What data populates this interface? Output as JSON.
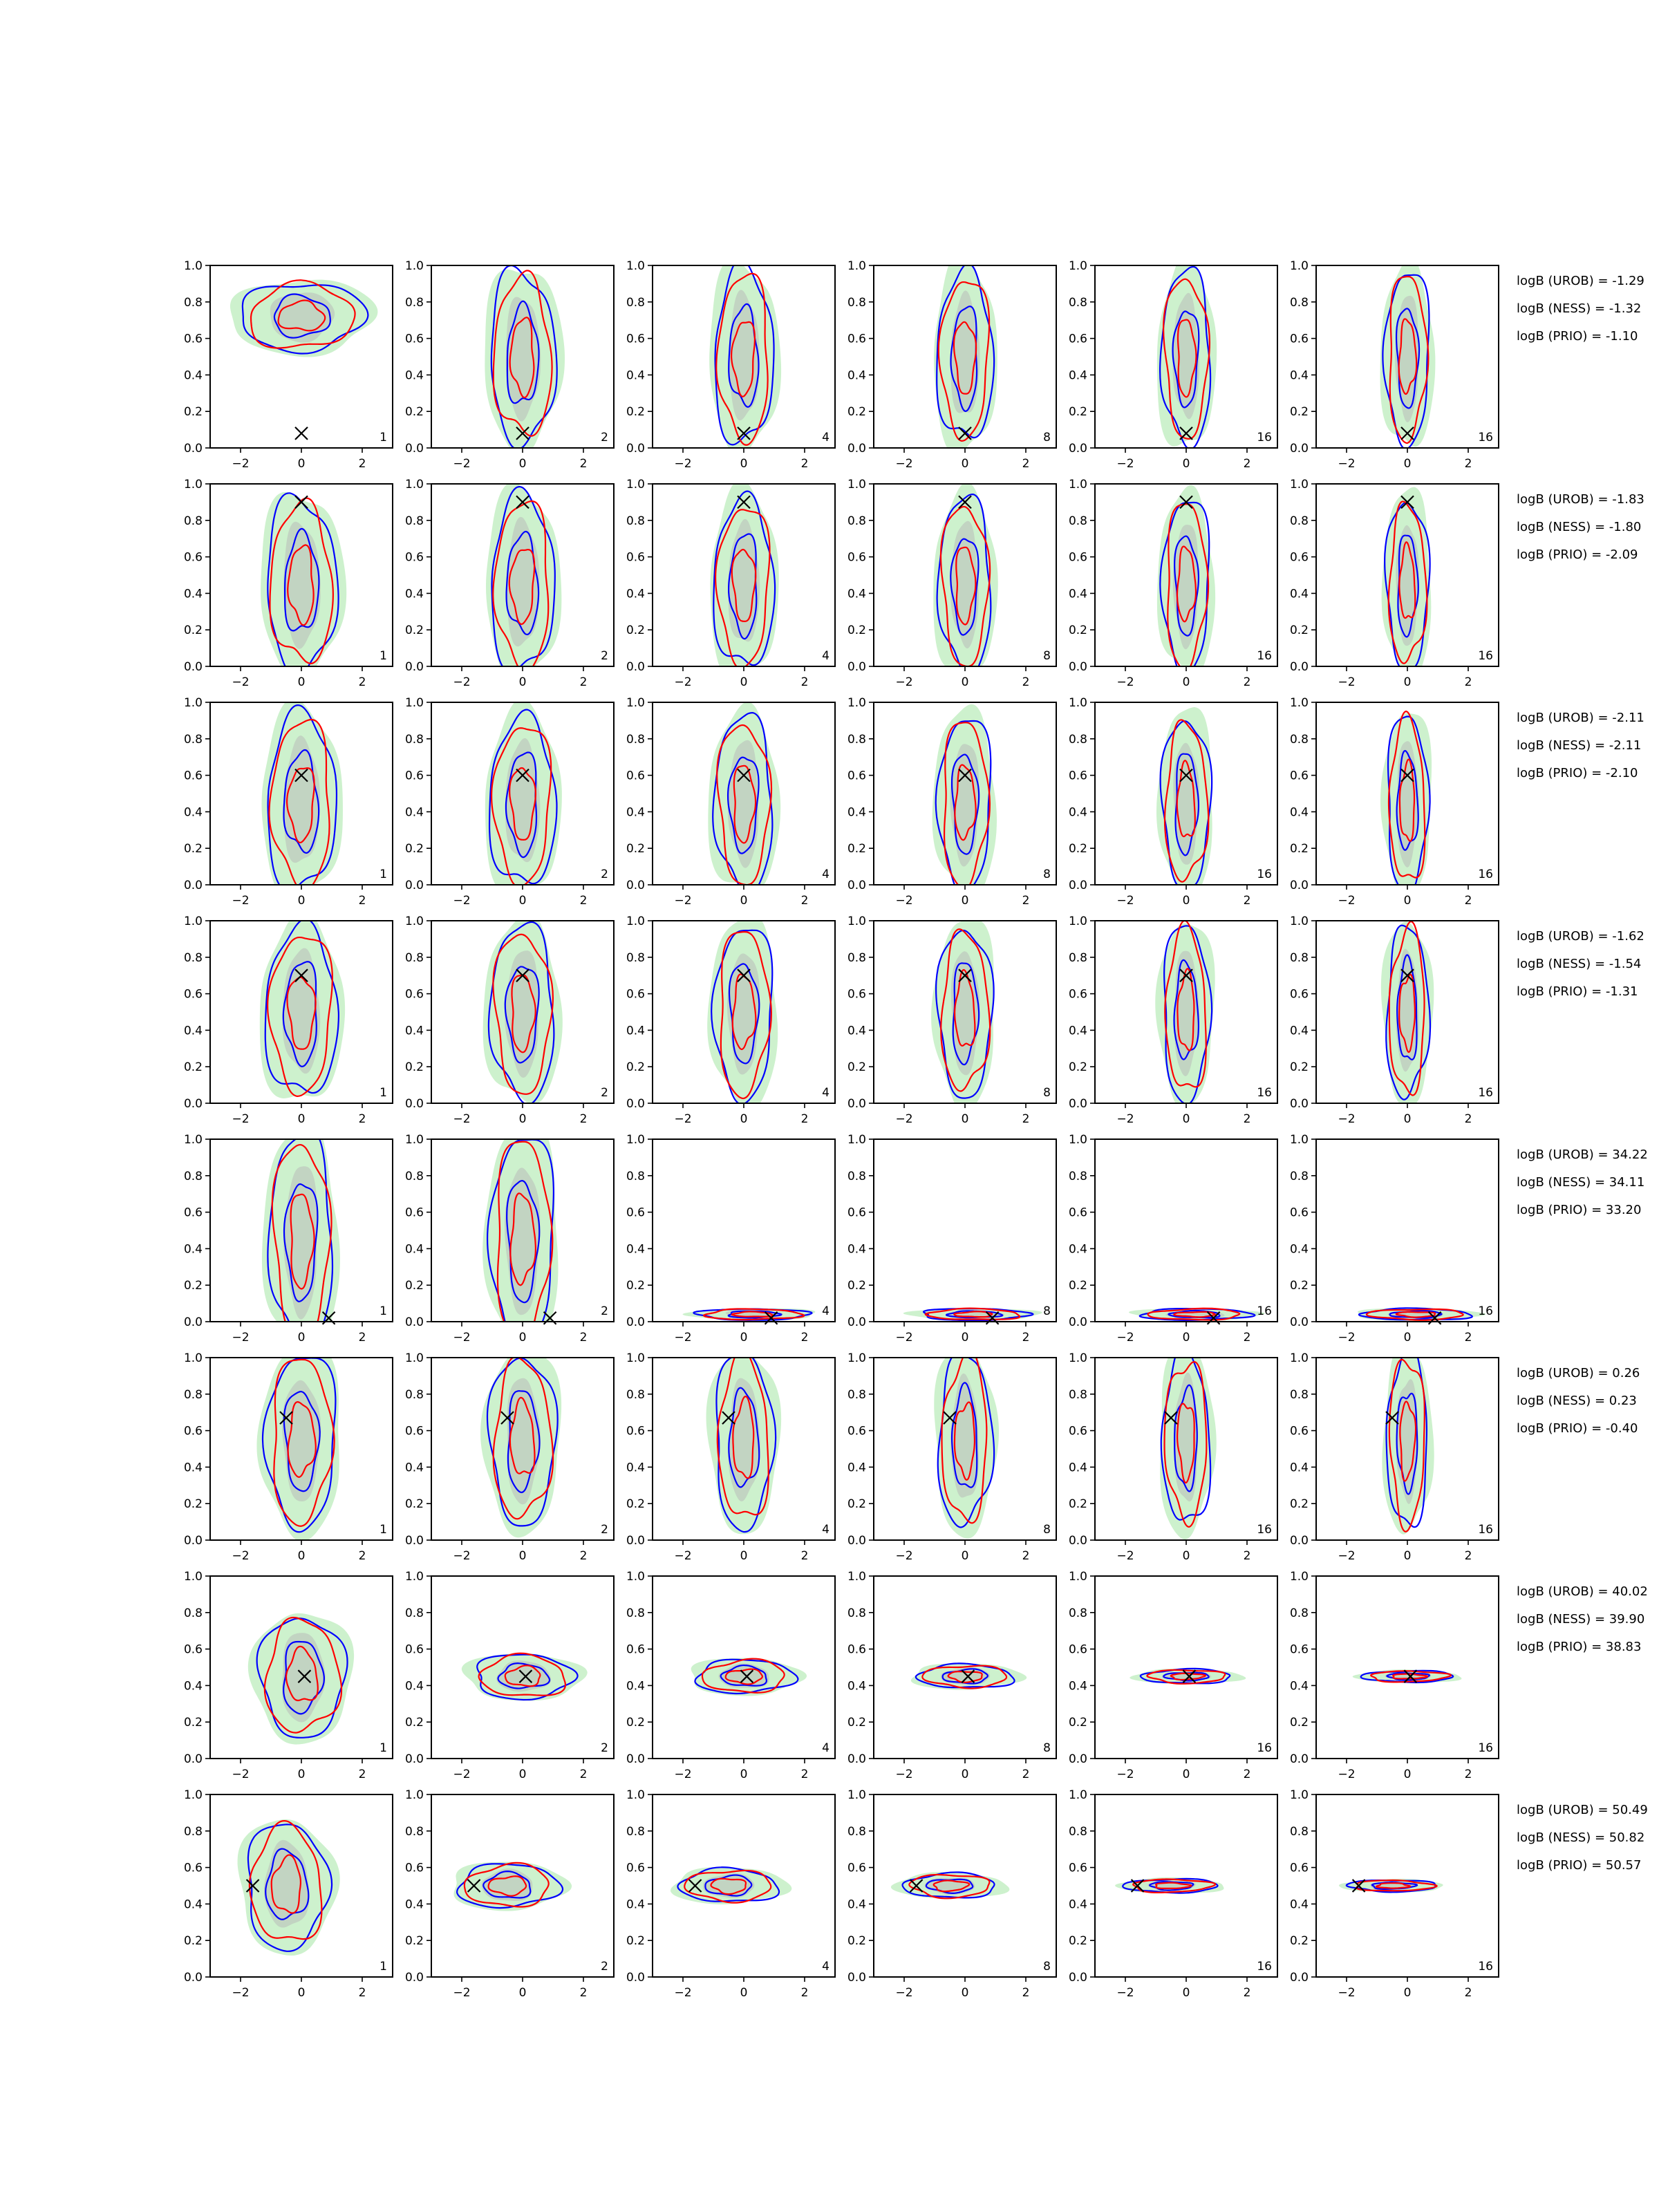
{
  "figure": {
    "rows": 8,
    "cols": 6,
    "colors": {
      "urob": "#0000ff",
      "ness": "#ff0000",
      "prio_fill": "#90e090",
      "prio_fill_alpha": 0.45,
      "core_fill": "#b8b8b8",
      "core_fill_alpha": 0.5,
      "marker": "#000000"
    },
    "marker_symbol": "×"
  },
  "chart_data": {
    "type": "contour-grid",
    "xlim": [
      -3,
      3
    ],
    "ylim": [
      0.0,
      1.0
    ],
    "x_ticks": [
      "−2",
      "0",
      "2"
    ],
    "y_ticks": [
      "0.0",
      "0.2",
      "0.4",
      "0.6",
      "0.8",
      "1.0"
    ],
    "column_labels": [
      "1",
      "2",
      "4",
      "8",
      "16",
      "16"
    ],
    "rows": [
      {
        "true_x": 0.0,
        "true_y": 0.08,
        "density_y": 0.7,
        "spread": "wide-top",
        "stats": {
          "urob": "logB (UROB) = -1.29",
          "ness": "logB (NESS) = -1.32",
          "prio": "logB (PRIO) = -1.10"
        }
      },
      {
        "true_x": 0.0,
        "true_y": 0.9,
        "density_y": 0.45,
        "spread": "vertical",
        "stats": {
          "urob": "logB (UROB) = -1.83",
          "ness": "logB (NESS) = -1.80",
          "prio": "logB (PRIO) = -2.09"
        }
      },
      {
        "true_x": 0.0,
        "true_y": 0.6,
        "density_y": 0.45,
        "spread": "vertical",
        "stats": {
          "urob": "logB (UROB) = -2.11",
          "ness": "logB (NESS) = -2.11",
          "prio": "logB (PRIO) = -2.10"
        }
      },
      {
        "true_x": 0.0,
        "true_y": 0.7,
        "density_y": 0.5,
        "spread": "vertical",
        "stats": {
          "urob": "logB (UROB) = -1.62",
          "ness": "logB (NESS) = -1.54",
          "prio": "logB (PRIO) = -1.31"
        }
      },
      {
        "true_x": 0.9,
        "true_y": 0.02,
        "density_y": 0.02,
        "spread": "collapse",
        "stats": {
          "urob": "logB (UROB) = 34.22",
          "ness": "logB (NESS) = 34.11",
          "prio": "logB (PRIO) = 33.20"
        }
      },
      {
        "true_x": -0.5,
        "true_y": 0.67,
        "density_y": 0.55,
        "spread": "vertical",
        "stats": {
          "urob": "logB (UROB) = 0.26",
          "ness": "logB (NESS) = 0.23",
          "prio": "logB (PRIO) = -0.40"
        }
      },
      {
        "true_x": 0.1,
        "true_y": 0.45,
        "density_y": 0.45,
        "spread": "horizontal",
        "stats": {
          "urob": "logB (UROB) = 40.02",
          "ness": "logB (NESS) = 39.90",
          "prio": "logB (PRIO) = 38.83"
        }
      },
      {
        "true_x": -1.6,
        "true_y": 0.5,
        "density_y": 0.5,
        "spread": "horizontal",
        "stats": {
          "urob": "logB (UROB) = 50.49",
          "ness": "logB (NESS) = 50.82",
          "prio": "logB (PRIO) = 50.57"
        }
      }
    ]
  }
}
